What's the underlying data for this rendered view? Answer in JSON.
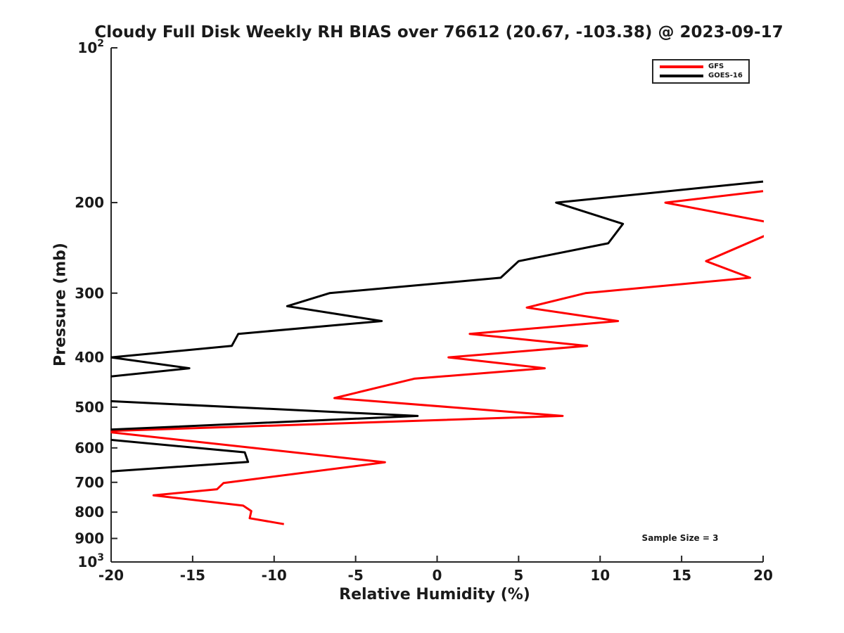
{
  "chart_data": {
    "type": "line",
    "title": "Cloudy Full Disk Weekly RH BIAS over 76612 (20.67, -103.38) @ 2023-09-17",
    "xlabel": "Relative Humidity (%)",
    "ylabel": "Pressure (mb)",
    "xlim": [
      -20,
      20
    ],
    "ylim": [
      100,
      1000
    ],
    "y_scale": "log",
    "y_inverted": true,
    "grid": false,
    "legend_position": "upper right",
    "annotation": "Sample Size = 3",
    "x_ticks": [
      -20,
      -15,
      -10,
      -5,
      0,
      5,
      10,
      15,
      20
    ],
    "y_ticks": [
      {
        "v": 100,
        "label": "10^2"
      },
      {
        "v": 200,
        "label": "200"
      },
      {
        "v": 300,
        "label": "300"
      },
      {
        "v": 400,
        "label": "400"
      },
      {
        "v": 500,
        "label": "500"
      },
      {
        "v": 600,
        "label": "600"
      },
      {
        "v": 700,
        "label": "700"
      },
      {
        "v": 800,
        "label": "800"
      },
      {
        "v": 900,
        "label": "900"
      },
      {
        "v": 1000,
        "label": "10^3"
      }
    ],
    "series": [
      {
        "name": "GFS",
        "color": "#ff0000",
        "points": [
          [
            20.0,
            190
          ],
          [
            14.0,
            200
          ],
          [
            21.5,
            222
          ],
          [
            16.5,
            260
          ],
          [
            19.2,
            280
          ],
          [
            9.1,
            300
          ],
          [
            5.5,
            320
          ],
          [
            11.1,
            340
          ],
          [
            2.0,
            360
          ],
          [
            9.2,
            380
          ],
          [
            0.7,
            400
          ],
          [
            6.6,
            420
          ],
          [
            -1.4,
            440
          ],
          [
            -6.3,
            480
          ],
          [
            7.7,
            520
          ],
          [
            -20.6,
            557
          ],
          [
            -3.2,
            640
          ],
          [
            -13.1,
            702
          ],
          [
            -13.5,
            722
          ],
          [
            -17.4,
            742
          ],
          [
            -11.9,
            777
          ],
          [
            -11.4,
            796
          ],
          [
            -11.5,
            822
          ],
          [
            -9.4,
            844
          ]
        ]
      },
      {
        "name": "GOES-16",
        "color": "#000000",
        "points": [
          [
            20.0,
            182
          ],
          [
            7.3,
            200
          ],
          [
            11.4,
            220
          ],
          [
            10.5,
            240
          ],
          [
            5.0,
            260
          ],
          [
            3.9,
            280
          ],
          [
            -6.6,
            300
          ],
          [
            -9.2,
            318
          ],
          [
            -3.4,
            340
          ],
          [
            -12.2,
            360
          ],
          [
            -12.6,
            380
          ],
          [
            -20.0,
            400
          ],
          [
            -15.2,
            420
          ],
          [
            -30.0,
            470
          ],
          [
            -1.2,
            520
          ],
          [
            -24.6,
            561
          ],
          [
            -11.8,
            612
          ],
          [
            -11.6,
            639
          ],
          [
            -24.0,
            680
          ]
        ]
      }
    ]
  }
}
